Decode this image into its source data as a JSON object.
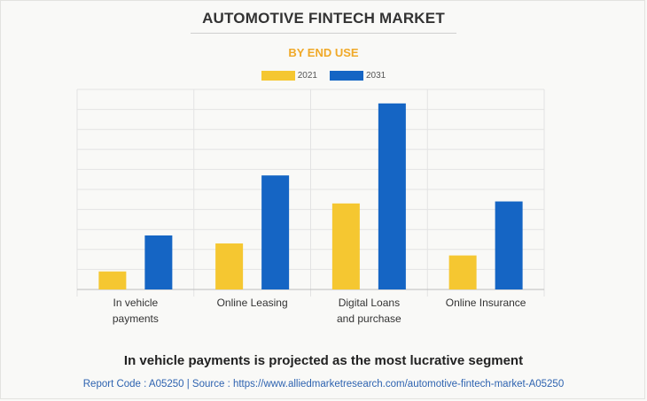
{
  "header": {
    "title": "AUTOMOTIVE FINTECH MARKET",
    "subtitle": "BY END USE"
  },
  "colors": {
    "subtitle": "#f0a928",
    "series_2021": "#f5c731",
    "series_2031": "#1565c4",
    "grid": "#e3e3e3",
    "axis": "#bdbdbd"
  },
  "legend": {
    "items": [
      {
        "label": "2021",
        "color": "#f5c731"
      },
      {
        "label": "2031",
        "color": "#1565c4"
      }
    ]
  },
  "chart_data": {
    "type": "bar",
    "categories": [
      [
        "In vehicle",
        "payments"
      ],
      [
        "Online Leasing"
      ],
      [
        "Digital Loans",
        "and purchase"
      ],
      [
        "Online Insurance"
      ]
    ],
    "series": [
      {
        "name": "2021",
        "values": [
          0.9,
          2.3,
          4.3,
          1.7
        ]
      },
      {
        "name": "2031",
        "values": [
          2.7,
          5.7,
          9.3,
          4.4
        ]
      }
    ],
    "ylim": [
      0,
      10
    ],
    "y_gridlines": 10,
    "grid": true,
    "y_tick_labels_shown": false,
    "legend_position": "top-center"
  },
  "headline": "In vehicle payments is projected as the most lucrative segment",
  "footer": "Report Code : A05250  |  Source : https://www.alliedmarketresearch.com/automotive-fintech-market-A05250"
}
